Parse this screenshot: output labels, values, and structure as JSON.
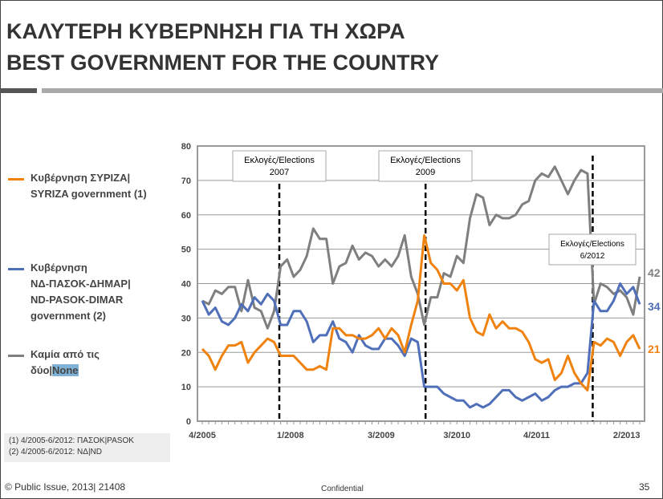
{
  "header": {
    "title_gr": "ΚΑΛΥΤΕΡΗ ΚΥΒΕΡΝΗΣΗ ΓΙΑ ΤΗ ΧΩΡΑ",
    "title_en": "BEST GOVERNMENT FOR THE COUNTRY"
  },
  "legend": [
    {
      "line1": "Κυβέρνηση ΣΥΡΙΖΑ|",
      "line2": "SYRIZA government (1)",
      "color": "#f0820f"
    },
    {
      "line1": "Κυβέρνηση",
      "line2": "ΝΔ-ΠΑΣΟΚ-ΔΗΜΑΡ|",
      "line3": "ND-PASOK-DIMAR",
      "line4": "government (2)",
      "color": "#4f6fb8"
    },
    {
      "line1": "Καμία από τις",
      "line2": "δύο|",
      "line2b": "None",
      "color": "#7f7f7f"
    }
  ],
  "notes": [
    "(1)   4/2005-6/2012: ΠΑΣΟΚ|PASOK",
    "(2)   4/2005-6/2012: ΝΔ|ND"
  ],
  "footer": {
    "copyright": "© Public Issue, 2013| 21408",
    "confidential": "Confidential",
    "page": "35"
  },
  "chart_data": {
    "type": "line",
    "ylim": [
      0,
      80
    ],
    "yticks": [
      0,
      10,
      20,
      30,
      40,
      50,
      60,
      70,
      80
    ],
    "xticks": [
      {
        "label": "4/2005",
        "index": 0
      },
      {
        "label": "1/2008",
        "index": 13.5
      },
      {
        "label": "3/2009",
        "index": 27.4
      },
      {
        "label": "3/2010",
        "index": 39
      },
      {
        "label": "4/2011",
        "index": 51.2
      },
      {
        "label": "2/2013",
        "index": 65
      }
    ],
    "elections": [
      {
        "line1": "Εκλογές/Elections",
        "line2": "2007",
        "index": 11.8
      },
      {
        "line1": "Εκλογές/Elections",
        "line2": "2009",
        "index": 34.2
      },
      {
        "line1": "Εκλογές/Elections",
        "line2": "6/2012",
        "index": 59.8
      }
    ],
    "series": [
      {
        "name": "Καμία από τις δύο|None",
        "color": "#7f7f7f",
        "last_label": "42",
        "values": [
          35,
          34,
          38,
          37,
          39,
          39,
          32,
          41,
          33,
          32,
          27,
          32,
          45,
          47,
          42,
          44,
          48,
          56,
          53,
          53,
          40,
          45,
          46,
          51,
          47,
          49,
          48,
          45,
          47,
          45,
          48,
          54,
          42,
          37,
          28,
          36,
          36,
          43,
          42,
          48,
          46,
          59,
          66,
          65,
          57,
          60,
          59,
          59,
          60,
          63,
          64,
          70,
          72,
          71,
          74,
          70,
          66,
          70,
          73,
          72,
          34,
          40,
          39,
          37,
          38,
          36,
          31,
          42
        ]
      },
      {
        "name": "Κυβέρνηση ΝΔ-ΠΑΣΟΚ-ΔΗΜΑΡ|ND-PASOK-DIMAR government (2)",
        "color": "#4f6fb8",
        "last_label": "34",
        "values": [
          35,
          31,
          33,
          29,
          28,
          30,
          34,
          32,
          36,
          34,
          37,
          35,
          28,
          28,
          32,
          32,
          29,
          23,
          25,
          25,
          29,
          24,
          23,
          20,
          25,
          22,
          21,
          21,
          24,
          24,
          22,
          19,
          24,
          23,
          10,
          10,
          10,
          8,
          7,
          6,
          6,
          4,
          5,
          4,
          5,
          7,
          9,
          9,
          7,
          6,
          7,
          8,
          6,
          7,
          9,
          10,
          10,
          11,
          11,
          14,
          35,
          32,
          32,
          35,
          40,
          37,
          39,
          34
        ]
      },
      {
        "name": "Κυβέρνηση ΣΥΡΙΖΑ|SYRIZA government (1)",
        "color": "#f0820f",
        "last_label": "21",
        "values": [
          21,
          19,
          15,
          19,
          22,
          22,
          23,
          17,
          20,
          22,
          24,
          23,
          19,
          19,
          19,
          17,
          15,
          15,
          16,
          15,
          27,
          27,
          25,
          25,
          24,
          24,
          25,
          27,
          24,
          27,
          25,
          20,
          28,
          35,
          54,
          46,
          44,
          40,
          40,
          38,
          41,
          30,
          26,
          25,
          31,
          27,
          29,
          27,
          27,
          26,
          23,
          18,
          17,
          18,
          12,
          14,
          19,
          14,
          11,
          9,
          23,
          22,
          24,
          23,
          19,
          23,
          25,
          21
        ]
      }
    ]
  }
}
